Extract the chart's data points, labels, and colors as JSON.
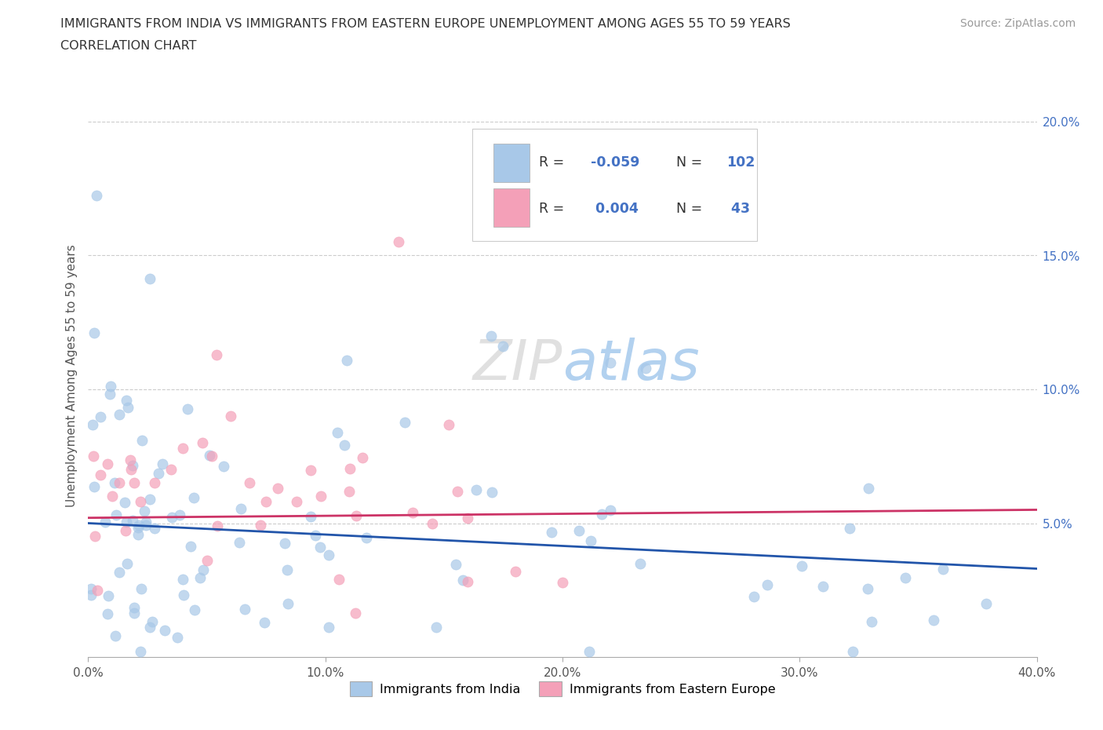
{
  "title_line1": "IMMIGRANTS FROM INDIA VS IMMIGRANTS FROM EASTERN EUROPE UNEMPLOYMENT AMONG AGES 55 TO 59 YEARS",
  "title_line2": "CORRELATION CHART",
  "source": "Source: ZipAtlas.com",
  "ylabel": "Unemployment Among Ages 55 to 59 years",
  "xlim": [
    0.0,
    0.4
  ],
  "ylim": [
    0.0,
    0.21
  ],
  "xticks": [
    0.0,
    0.1,
    0.2,
    0.3,
    0.4
  ],
  "xticklabels": [
    "0.0%",
    "10.0%",
    "20.0%",
    "30.0%",
    "40.0%"
  ],
  "yticks": [
    0.05,
    0.1,
    0.15,
    0.2
  ],
  "yticklabels": [
    "5.0%",
    "10.0%",
    "15.0%",
    "20.0%"
  ],
  "color_india": "#a8c8e8",
  "color_ee": "#f4a0b8",
  "line_color_india": "#2255aa",
  "line_color_ee": "#cc3366",
  "legend_R_india": "-0.059",
  "legend_N_india": "102",
  "legend_R_ee": "0.004",
  "legend_N_ee": "43",
  "india_line_x0": 0.0,
  "india_line_x1": 0.4,
  "india_line_y0": 0.05,
  "india_line_y1": 0.033,
  "ee_line_x0": 0.0,
  "ee_line_x1": 0.4,
  "ee_line_y0": 0.052,
  "ee_line_y1": 0.055
}
